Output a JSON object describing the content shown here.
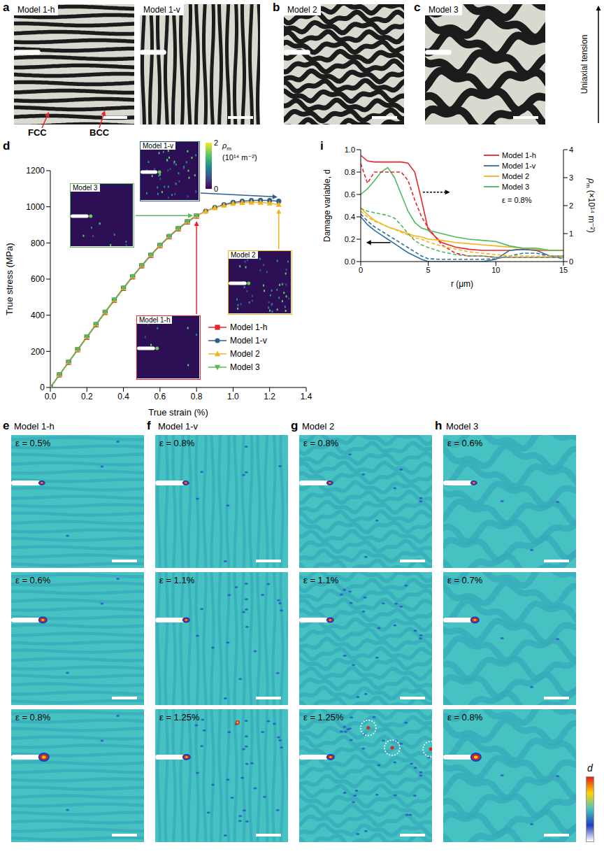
{
  "chart_data": [
    {
      "type": "line",
      "letter": "d",
      "xlabel": "True strain (%)",
      "ylabel": "True stress (MPa)",
      "x": [
        0,
        0.05,
        0.1,
        0.15,
        0.2,
        0.25,
        0.3,
        0.35,
        0.4,
        0.45,
        0.5,
        0.55,
        0.6,
        0.65,
        0.7,
        0.75,
        0.8,
        0.85,
        0.9,
        0.95,
        1,
        1.05,
        1.1,
        1.15,
        1.2,
        1.25
      ],
      "series": [
        {
          "name": "Model 1-h",
          "color": "#e8262a",
          "marker": "square",
          "values": [
            0,
            70,
            139,
            209,
            278,
            347,
            415,
            482,
            548,
            612,
            673,
            731,
            785,
            834,
            878,
            916,
            948,
            null,
            null,
            null,
            null,
            null,
            null,
            null,
            null,
            null
          ]
        },
        {
          "name": "Model 1-v",
          "color": "#2f5f8f",
          "marker": "circle",
          "values": [
            0,
            70,
            140,
            210,
            280,
            349,
            417,
            484,
            550,
            614,
            675,
            733,
            787,
            836,
            880,
            918,
            950,
            976,
            996,
            1012,
            1024,
            1031,
            1035,
            1036,
            1035,
            1031
          ]
        },
        {
          "name": "Model 2",
          "color": "#f6b41c",
          "marker": "triangle",
          "values": [
            0,
            70,
            140,
            210,
            280,
            349,
            417,
            484,
            550,
            614,
            675,
            733,
            787,
            836,
            880,
            918,
            949,
            975,
            994,
            1008,
            1018,
            1023,
            1025,
            1024,
            1020,
            1012
          ]
        },
        {
          "name": "Model 3",
          "color": "#5bb85c",
          "marker": "triangle-down",
          "values": [
            0,
            71,
            141,
            211,
            281,
            350,
            418,
            485,
            551,
            615,
            676,
            734,
            788,
            837,
            881,
            919,
            951,
            null,
            null,
            null,
            null,
            null,
            null,
            null,
            null,
            null
          ]
        }
      ],
      "xlim": [
        0,
        1.4
      ],
      "xticks": [
        {
          "value": 0,
          "label": "0.0"
        },
        0.2,
        0.4,
        0.6,
        0.8,
        {
          "value": 1,
          "label": "1.0"
        },
        1.2,
        1.4
      ],
      "ylim": [
        0,
        1200
      ],
      "yticks": [
        0,
        200,
        400,
        600,
        800,
        1000,
        1200
      ],
      "legend": "lower right",
      "insets": [
        {
          "title": "Model 3"
        },
        {
          "title": "Model 1-v"
        },
        {
          "title": "Model 2"
        },
        {
          "title": "Model 1-h"
        }
      ],
      "colorbar": {
        "symbol": "ρ",
        "subscript": "m",
        "unit": "(10¹⁴ m⁻²)",
        "range": [
          0,
          2
        ],
        "ticks": [
          0,
          2
        ]
      }
    },
    {
      "type": "line",
      "letter": "i",
      "xlabel": "r (μm)",
      "ylabel": "Damage variable, d",
      "y2label": {
        "symbol": "ρ",
        "subscript": "m",
        "unit": "(×10¹⁴ m⁻²)"
      },
      "annotations": [
        "ε = 0.8%"
      ],
      "x": [
        0,
        0.5,
        1,
        1.5,
        2,
        2.5,
        3,
        3.5,
        4,
        4.5,
        5,
        6,
        7,
        8,
        9,
        10,
        11,
        12,
        13,
        14,
        15
      ],
      "series": [
        {
          "name": "Model 1-h",
          "color": "#e8262a",
          "line_style": "solid",
          "values": [
            0.95,
            0.9,
            0.89,
            0.89,
            0.89,
            0.89,
            0.89,
            0.88,
            0.8,
            0.55,
            0.28,
            0.17,
            0.13,
            0.11,
            0.1,
            0.1,
            0.1,
            0.11,
            0.1,
            0.1,
            0.1
          ]
        },
        {
          "name": "Model 1-v",
          "color": "#2f6f9f",
          "line_style": "solid",
          "values": [
            0.4,
            0.33,
            0.28,
            0.24,
            0.2,
            0.16,
            0.12,
            0.08,
            0.05,
            0.02,
            0,
            0,
            0,
            0,
            0,
            0.02,
            0.1,
            0.11,
            0.1,
            0.05,
            0.05
          ]
        },
        {
          "name": "Model 2",
          "color": "#f6b41c",
          "line_style": "solid",
          "values": [
            0.48,
            0.42,
            0.37,
            0.34,
            0.31,
            0.29,
            0.27,
            0.25,
            0.23,
            0.22,
            0.2,
            0.19,
            0.17,
            0.16,
            0.15,
            0.14,
            0.13,
            0.12,
            0.11,
            0.1,
            0.1
          ]
        },
        {
          "name": "Model 3",
          "color": "#4cb860",
          "line_style": "solid",
          "values": [
            0.6,
            0.65,
            0.72,
            0.8,
            0.84,
            0.75,
            0.6,
            0.45,
            0.35,
            0.3,
            0.28,
            0.25,
            0.22,
            0.2,
            0.19,
            0.18,
            0.14,
            0.12,
            0.12,
            0.1,
            0.1
          ]
        },
        {
          "name": "Model 1-h",
          "color": "#e8262a",
          "line_style": "dashed",
          "axis": "y2",
          "values": [
            3.5,
            2.8,
            3.2,
            3.2,
            3.2,
            3.2,
            3.2,
            2.9,
            2.2,
            1.6,
            1.2,
            0.6,
            0.3,
            0.2,
            0.2,
            0.15,
            0.15,
            0.15,
            0.15,
            0.15,
            0.15
          ]
        },
        {
          "name": "Model 1-v",
          "color": "#2f6f9f",
          "line_style": "dashed",
          "axis": "y2",
          "values": [
            1.7,
            1.45,
            1.25,
            1.1,
            0.95,
            0.8,
            0.65,
            0.5,
            0.35,
            0.2,
            0.1,
            0.08,
            0.08,
            0.08,
            0.08,
            0.1,
            0.2,
            0.3,
            0.3,
            0.2,
            0.1
          ]
        },
        {
          "name": "Model 2",
          "color": "#f6b41c",
          "line_style": "dashed",
          "axis": "y2",
          "values": [
            1.8,
            1.6,
            1.45,
            1.35,
            1.25,
            1.15,
            1.05,
            0.95,
            0.85,
            0.8,
            0.7,
            0.55,
            0.45,
            0.35,
            0.3,
            0.25,
            0.2,
            0.2,
            0.2,
            0.2,
            0.2
          ]
        },
        {
          "name": "Model 3",
          "color": "#4cb860",
          "line_style": "dashed",
          "axis": "y2",
          "values": [
            1.9,
            1.8,
            1.75,
            1.7,
            1.65,
            1.55,
            1.3,
            1.0,
            0.75,
            0.6,
            0.5,
            0.35,
            0.25,
            0.2,
            0.2,
            0.15,
            0.15,
            0.15,
            0.15,
            0.15,
            0.15
          ]
        }
      ],
      "xlim": [
        0,
        15
      ],
      "xticks": [
        0,
        5,
        10,
        15
      ],
      "ylim": [
        0,
        1
      ],
      "yticks": [
        {
          "value": 0,
          "label": "0.0"
        },
        0.2,
        0.4,
        0.6,
        0.8,
        {
          "value": 1,
          "label": "1.0"
        }
      ],
      "y2lim": [
        0,
        4
      ],
      "y2ticks": [
        0,
        1,
        2,
        3,
        4
      ],
      "legend": "upper right"
    }
  ],
  "figure": {
    "structure_panels": [
      {
        "letter": "a",
        "titles": [
          "Model 1-h",
          "Model 1-v"
        ],
        "annotations": [
          "FCC",
          "BCC"
        ]
      },
      {
        "letter": "b",
        "titles": [
          "Model 2"
        ]
      },
      {
        "letter": "c",
        "titles": [
          "Model 3"
        ]
      }
    ],
    "tension_label": "Uniaxial tension",
    "damage_panels": [
      {
        "letter": "e",
        "title": "Model 1-h",
        "frames": [
          "ε = 0.5%",
          "ε = 0.6%",
          "ε = 0.8%"
        ]
      },
      {
        "letter": "f",
        "title": "Model 1-v",
        "frames": [
          "ε = 0.8%",
          "ε = 1.1%",
          "ε = 1.25%"
        ]
      },
      {
        "letter": "g",
        "title": "Model 2",
        "frames": [
          "ε = 0.8%",
          "ε = 1.1%",
          "ε = 1.25%"
        ]
      },
      {
        "letter": "h",
        "title": "Model 3",
        "frames": [
          "ε = 0.6%",
          "ε = 0.7%",
          "ε = 0.8%"
        ]
      }
    ],
    "damage_colorbar": {
      "label": "d"
    }
  }
}
